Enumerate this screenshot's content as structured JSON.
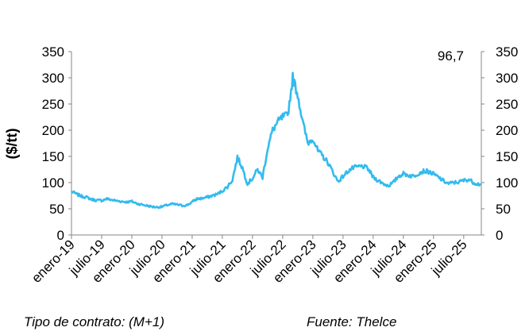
{
  "chart_data": {
    "type": "line",
    "ylabel": "($/tt)",
    "ylim": [
      0,
      350
    ],
    "yticks": [
      "0",
      "50",
      "100",
      "150",
      "200",
      "250",
      "300",
      "350"
    ],
    "ytick_values": [
      0,
      50,
      100,
      150,
      200,
      250,
      300,
      350
    ],
    "secondary_y_axis": true,
    "x_tick_labels": [
      "enero-19",
      "julio-19",
      "enero-20",
      "julio-20",
      "enero-21",
      "julio-21",
      "enero-22",
      "julio-22",
      "enero-23",
      "julio-23",
      "enero-24",
      "julio-24",
      "enero-25",
      "julio-25"
    ],
    "x_tick_dates": [
      "2019-01",
      "2019-07",
      "2020-01",
      "2020-07",
      "2021-01",
      "2021-07",
      "2022-01",
      "2022-07",
      "2023-01",
      "2023-07",
      "2024-01",
      "2024-07",
      "2025-01",
      "2025-07"
    ],
    "last_value_label": "96,7",
    "line_color": "#33bbee",
    "grid": false,
    "series": [
      {
        "x": [
          "2019-01",
          "2019-02",
          "2019-03",
          "2019-04",
          "2019-05",
          "2019-06",
          "2019-07",
          "2019-08",
          "2019-09",
          "2019-10",
          "2019-11",
          "2019-12",
          "2020-01",
          "2020-02",
          "2020-03",
          "2020-04",
          "2020-05",
          "2020-06",
          "2020-07",
          "2020-08",
          "2020-09",
          "2020-10",
          "2020-11",
          "2020-12",
          "2021-01",
          "2021-02",
          "2021-03",
          "2021-04",
          "2021-05",
          "2021-06",
          "2021-07",
          "2021-08",
          "2021-09",
          "2021-10",
          "2021-11",
          "2021-12",
          "2022-01",
          "2022-02",
          "2022-03",
          "2022-04",
          "2022-05",
          "2022-06",
          "2022-07",
          "2022-08",
          "2022-09",
          "2022-10",
          "2022-11",
          "2022-12",
          "2023-01",
          "2023-02",
          "2023-03",
          "2023-04",
          "2023-05",
          "2023-06",
          "2023-07",
          "2023-08",
          "2023-09",
          "2023-10",
          "2023-11",
          "2023-12",
          "2024-01",
          "2024-02",
          "2024-03",
          "2024-04",
          "2024-05",
          "2024-06",
          "2024-07",
          "2024-08",
          "2024-09",
          "2024-10",
          "2024-11",
          "2024-12",
          "2025-01",
          "2025-02",
          "2025-03",
          "2025-04",
          "2025-05",
          "2025-06",
          "2025-07",
          "2025-08",
          "2025-09",
          "2025-10"
        ],
        "values": [
          83,
          78,
          74,
          72,
          68,
          66,
          66,
          69,
          67,
          65,
          64,
          63,
          64,
          60,
          58,
          56,
          54,
          53,
          54,
          57,
          59,
          58,
          56,
          57,
          63,
          69,
          70,
          72,
          75,
          78,
          84,
          92,
          105,
          148,
          128,
          98,
          108,
          125,
          110,
          165,
          200,
          215,
          225,
          228,
          300,
          268,
          215,
          175,
          185,
          160,
          150,
          138,
          120,
          102,
          112,
          122,
          128,
          130,
          131,
          126,
          110,
          104,
          98,
          94,
          100,
          112,
          117,
          114,
          112,
          118,
          122,
          121,
          116,
          110,
          103,
          98,
          100,
          101,
          104,
          106,
          100,
          96.7
        ]
      }
    ]
  },
  "footer": {
    "contract_type": "Tipo de contrato: (M+1)",
    "source": "Fuente: Thelce"
  }
}
